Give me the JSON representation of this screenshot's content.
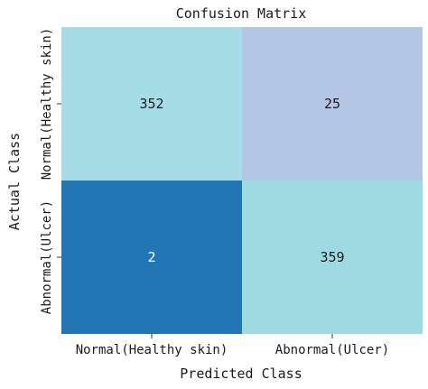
{
  "chart_data": {
    "type": "heatmap",
    "title": "Confusion Matrix",
    "xlabel": "Predicted Class",
    "ylabel": "Actual Class",
    "x_categories": [
      "Normal(Healthy skin)",
      "Abnormal(Ulcer)"
    ],
    "y_categories": [
      "Normal(Healthy skin)",
      "Abnormal(Ulcer)"
    ],
    "values": [
      [
        352,
        25
      ],
      [
        2,
        359
      ]
    ],
    "cell_colors": [
      [
        "#a6dce6",
        "#b3c6e6"
      ],
      [
        "#2176b3",
        "#9fdae3"
      ]
    ],
    "cell_text_colors": [
      [
        "#1a1a1a",
        "#1a1a1a"
      ],
      [
        "#ffffff",
        "#1a1a1a"
      ]
    ],
    "colorbar": false,
    "grid": false
  }
}
